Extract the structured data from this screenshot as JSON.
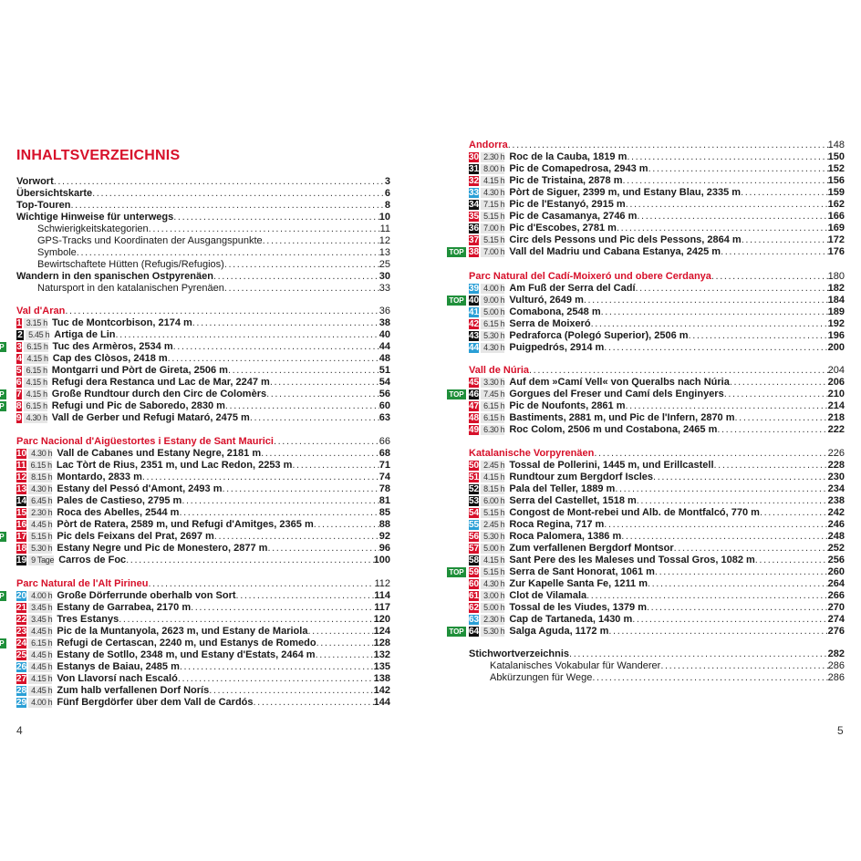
{
  "heading": "INHALTSVERZEICHNIS",
  "top_label": "TOP",
  "colors": {
    "red": "#d7102a",
    "black": "#111111",
    "blue": "#2a9fd6",
    "green": "#1f8f3a",
    "time_bg": "#e6e6e6"
  },
  "folios": {
    "left": "4",
    "right": "5"
  },
  "left_front": [
    {
      "label": "Vorwort",
      "page": "3",
      "style": "bold"
    },
    {
      "label": "Übersichtskarte",
      "page": "6",
      "style": "bold"
    },
    {
      "label": "Top-Touren",
      "page": "8",
      "style": "bold"
    },
    {
      "label": "Wichtige Hinweise für unterwegs",
      "page": "10",
      "style": "bold"
    },
    {
      "label": "Schwierigkeitskategorien",
      "page": "11",
      "style": "sub"
    },
    {
      "label": "GPS-Tracks und Koordinaten der Ausgangspunkte",
      "page": "12",
      "style": "sub"
    },
    {
      "label": "Symbole",
      "page": "13",
      "style": "sub"
    },
    {
      "label": "Bewirtschaftete Hütten (Refugis/Refugios)",
      "page": "25",
      "style": "sub"
    },
    {
      "label": "Wandern in den spanischen Ostpyrenäen",
      "page": "30",
      "style": "bold"
    },
    {
      "label": "Natursport in den katalanischen Pyrenäen",
      "page": "33",
      "style": "sub"
    }
  ],
  "sections": [
    {
      "col": "left",
      "name": "Val d'Aran",
      "page": "36",
      "tours": [
        {
          "num": "1",
          "color": "red",
          "time": "3.15 h",
          "title": "Tuc de Montcorbison, 2174 m",
          "page": "38"
        },
        {
          "num": "2",
          "color": "black",
          "time": "5.45 h",
          "title": "Artiga de Lin",
          "page": "40"
        },
        {
          "num": "3",
          "color": "red",
          "time": "6.15 h",
          "title": "Tuc des Armèros, 2534 m",
          "page": "44",
          "top": true
        },
        {
          "num": "4",
          "color": "red",
          "time": "4.15 h",
          "title": "Cap des Clòsos, 2418 m",
          "page": "48"
        },
        {
          "num": "5",
          "color": "red",
          "time": "6.15 h",
          "title": "Montgarri und Pòrt de Gireta, 2506 m",
          "page": "51"
        },
        {
          "num": "6",
          "color": "red",
          "time": "4.15 h",
          "title": "Refugi dera Restanca und Lac de Mar, 2247 m",
          "page": "54"
        },
        {
          "num": "7",
          "color": "red",
          "time": "4.15 h",
          "title": "Große Rundtour durch den Circ de Colomèrs",
          "page": "56",
          "top": true
        },
        {
          "num": "8",
          "color": "red",
          "time": "6.15 h",
          "title": "Refugi und Pic de Saboredo, 2830 m",
          "page": "60",
          "top": true
        },
        {
          "num": "9",
          "color": "red",
          "time": "4.30 h",
          "title": "Vall de Gerber und Refugi Mataró, 2475 m",
          "page": "63"
        }
      ]
    },
    {
      "col": "left",
      "name": "Parc Nacional d'Aigüestortes i Estany de Sant Maurici",
      "page": "66",
      "tours": [
        {
          "num": "10",
          "color": "red",
          "time": "4.30 h",
          "title": "Vall de Cabanes und Estany Negre, 2181 m",
          "page": "68"
        },
        {
          "num": "11",
          "color": "red",
          "time": "6.15 h",
          "title": "Lac Tòrt de Rius, 2351 m, und Lac Redon, 2253 m",
          "page": "71"
        },
        {
          "num": "12",
          "color": "red",
          "time": "8.15 h",
          "title": "Montardo, 2833 m",
          "page": "74"
        },
        {
          "num": "13",
          "color": "red",
          "time": "4.30 h",
          "title": "Estany del Pessó d'Amont, 2493 m",
          "page": "78"
        },
        {
          "num": "14",
          "color": "black",
          "time": "6.45 h",
          "title": "Pales de Castieso, 2795 m",
          "page": "81"
        },
        {
          "num": "15",
          "color": "red",
          "time": "2.30 h",
          "title": "Roca des Abelles, 2544 m",
          "page": "85"
        },
        {
          "num": "16",
          "color": "red",
          "time": "4.45 h",
          "title": "Pòrt de Ratera, 2589 m, und Refugi d'Amitges, 2365 m",
          "page": "88"
        },
        {
          "num": "17",
          "color": "red",
          "time": "5.15 h",
          "title": "Pic dels Feixans del Prat, 2697 m",
          "page": "92",
          "top": true
        },
        {
          "num": "18",
          "color": "red",
          "time": "5.30 h",
          "title": "Estany Negre und Pic de Monestero, 2877 m",
          "page": "96"
        },
        {
          "num": "19",
          "color": "black",
          "time": "9 Tage",
          "title": "Carros de Foc",
          "page": "100"
        }
      ]
    },
    {
      "col": "left",
      "name": "Parc Natural de l'Alt Pirineu",
      "page": "112",
      "tours": [
        {
          "num": "20",
          "color": "blue",
          "time": "4.00 h",
          "title": "Große Dörferrunde oberhalb von Sort",
          "page": "114",
          "top": true
        },
        {
          "num": "21",
          "color": "red",
          "time": "3.45 h",
          "title": "Estany de Garrabea, 2170 m",
          "page": "117"
        },
        {
          "num": "22",
          "color": "red",
          "time": "3.45 h",
          "title": "Tres Estanys",
          "page": "120"
        },
        {
          "num": "23",
          "color": "red",
          "time": "4.45 h",
          "title": "Pic de la Muntanyola, 2623 m, und Estany de Mariola",
          "page": "124"
        },
        {
          "num": "24",
          "color": "red",
          "time": "6.15 h",
          "title": "Refugi de Certascan, 2240 m, und Estanys de Romedo",
          "page": "128",
          "top": true
        },
        {
          "num": "25",
          "color": "red",
          "time": "4.45 h",
          "title": "Estany de Sotllo, 2348 m, und Estany d'Estats, 2464 m",
          "page": "132"
        },
        {
          "num": "26",
          "color": "blue",
          "time": "4.45 h",
          "title": "Estanys de Baiau, 2485 m",
          "page": "135"
        },
        {
          "num": "27",
          "color": "red",
          "time": "4.15 h",
          "title": "Von Llavorsí nach Escaló",
          "page": "138"
        },
        {
          "num": "28",
          "color": "blue",
          "time": "4.45 h",
          "title": "Zum halb verfallenen Dorf Norís",
          "page": "142"
        },
        {
          "num": "29",
          "color": "blue",
          "time": "4.00 h",
          "title": "Fünf Bergdörfer über dem Vall de Cardós",
          "page": "144"
        }
      ]
    },
    {
      "col": "right",
      "name": "Andorra",
      "page": "148",
      "tours": [
        {
          "num": "30",
          "color": "red",
          "time": "2.30 h",
          "title": "Roc de la Cauba, 1819 m",
          "page": "150"
        },
        {
          "num": "31",
          "color": "black",
          "time": "8.00 h",
          "title": "Pic de Comapedrosa, 2943 m",
          "page": "152"
        },
        {
          "num": "32",
          "color": "red",
          "time": "4.15 h",
          "title": "Pic de Tristaina, 2878 m",
          "page": "156"
        },
        {
          "num": "33",
          "color": "blue",
          "time": "4.30 h",
          "title": "Pòrt de Siguer, 2399 m, und Estany Blau, 2335 m",
          "page": "159"
        },
        {
          "num": "34",
          "color": "black",
          "time": "7.15 h",
          "title": "Pic de l'Estanyó, 2915 m",
          "page": "162"
        },
        {
          "num": "35",
          "color": "red",
          "time": "5.15 h",
          "title": "Pic de Casamanya, 2746 m",
          "page": "166"
        },
        {
          "num": "36",
          "color": "black",
          "time": "7.00 h",
          "title": "Pic d'Escobes, 2781 m",
          "page": "169"
        },
        {
          "num": "37",
          "color": "red",
          "time": "5.15 h",
          "title": "Circ dels Pessons und Pic dels Pessons, 2864 m",
          "page": "172"
        },
        {
          "num": "38",
          "color": "red",
          "time": "7.00 h",
          "title": "Vall del Madriu und Cabana Estanya, 2425 m",
          "page": "176",
          "top": true
        }
      ]
    },
    {
      "col": "right",
      "name": "Parc Natural del Cadí-Moixeró und obere Cerdanya",
      "page": "180",
      "tours": [
        {
          "num": "39",
          "color": "blue",
          "time": "4.00 h",
          "title": "Am Fuß der Serra del Cadí",
          "page": "182"
        },
        {
          "num": "40",
          "color": "black",
          "time": "9.00 h",
          "title": "Vulturó, 2649 m",
          "page": "184",
          "top": true
        },
        {
          "num": "41",
          "color": "blue",
          "time": "5.00 h",
          "title": "Comabona, 2548 m",
          "page": "189"
        },
        {
          "num": "42",
          "color": "red",
          "time": "6.15 h",
          "title": "Serra de Moixeró",
          "page": "192"
        },
        {
          "num": "43",
          "color": "black",
          "time": "5.30 h",
          "title": "Pedraforca (Polegó Superior), 2506 m",
          "page": "196"
        },
        {
          "num": "44",
          "color": "blue",
          "time": "4.30 h",
          "title": "Puigpedrós, 2914 m",
          "page": "200"
        }
      ]
    },
    {
      "col": "right",
      "name": "Vall de Núria",
      "page": "204",
      "tours": [
        {
          "num": "45",
          "color": "red",
          "time": "3.30 h",
          "title": "Auf dem »Camí Vell« von Queralbs nach Núria",
          "page": "206"
        },
        {
          "num": "46",
          "color": "black",
          "time": "7.45 h",
          "title": "Gorgues del Freser und Camí dels Enginyers",
          "page": "210",
          "top": true
        },
        {
          "num": "47",
          "color": "red",
          "time": "6.15 h",
          "title": "Pic de Noufonts, 2861 m",
          "page": "214"
        },
        {
          "num": "48",
          "color": "red",
          "time": "6.15 h",
          "title": "Bastiments, 2881 m, und Pic de l'Infern, 2870 m",
          "page": "218"
        },
        {
          "num": "49",
          "color": "red",
          "time": "6.30 h",
          "title": "Roc Colom, 2506 m und Costabona, 2465 m",
          "page": "222"
        }
      ]
    },
    {
      "col": "right",
      "name": "Katalanische Vorpyrenäen",
      "page": "226",
      "tours": [
        {
          "num": "50",
          "color": "red",
          "time": "2.45 h",
          "title": "Tossal de Pollerini, 1445 m, und Erillcastell",
          "page": "228"
        },
        {
          "num": "51",
          "color": "red",
          "time": "4.15 h",
          "title": "Rundtour zum Bergdorf Iscles",
          "page": "230"
        },
        {
          "num": "52",
          "color": "black",
          "time": "8.15 h",
          "title": "Pala del Teller, 1889 m",
          "page": "234"
        },
        {
          "num": "53",
          "color": "black",
          "time": "6.00 h",
          "title": "Serra del Castellet, 1518 m",
          "page": "238"
        },
        {
          "num": "54",
          "color": "red",
          "time": "5.15 h",
          "title": "Congost de Mont-rebei und Alb. de Montfalcó, 770 m",
          "page": "242"
        },
        {
          "num": "55",
          "color": "blue",
          "time": "2.45 h",
          "title": "Roca Regina, 717 m",
          "page": "246"
        },
        {
          "num": "56",
          "color": "red",
          "time": "5.30 h",
          "title": "Roca Palomera, 1386 m",
          "page": "248"
        },
        {
          "num": "57",
          "color": "red",
          "time": "5.00 h",
          "title": "Zum verfallenen Bergdorf Montsor",
          "page": "252"
        },
        {
          "num": "58",
          "color": "black",
          "time": "4.15 h",
          "title": "Sant Pere des les Maleses und Tossal Gros, 1082 m",
          "page": "256"
        },
        {
          "num": "59",
          "color": "red",
          "time": "5.15 h",
          "title": "Serra de Sant Honorat, 1061 m",
          "page": "260",
          "top": true
        },
        {
          "num": "60",
          "color": "red",
          "time": "4.30 h",
          "title": "Zur Kapelle Santa Fe, 1211 m",
          "page": "264"
        },
        {
          "num": "61",
          "color": "red",
          "time": "3.00 h",
          "title": "Clot de Vilamala",
          "page": "266"
        },
        {
          "num": "62",
          "color": "red",
          "time": "5.00 h",
          "title": "Tossal de les Viudes, 1379 m",
          "page": "270"
        },
        {
          "num": "63",
          "color": "blue",
          "time": "2.30 h",
          "title": "Cap de Tartaneda, 1430 m",
          "page": "274"
        },
        {
          "num": "64",
          "color": "black",
          "time": "5.30 h",
          "title": "Salga Aguda, 1172 m",
          "page": "276",
          "top": true
        }
      ]
    }
  ],
  "right_back": [
    {
      "label": "Stichwortverzeichnis",
      "page": "282",
      "style": "bold"
    },
    {
      "label": "Katalanisches Vokabular für Wanderer",
      "page": "286",
      "style": "sub"
    },
    {
      "label": "Abkürzungen für Wege",
      "page": "286",
      "style": "sub"
    }
  ]
}
